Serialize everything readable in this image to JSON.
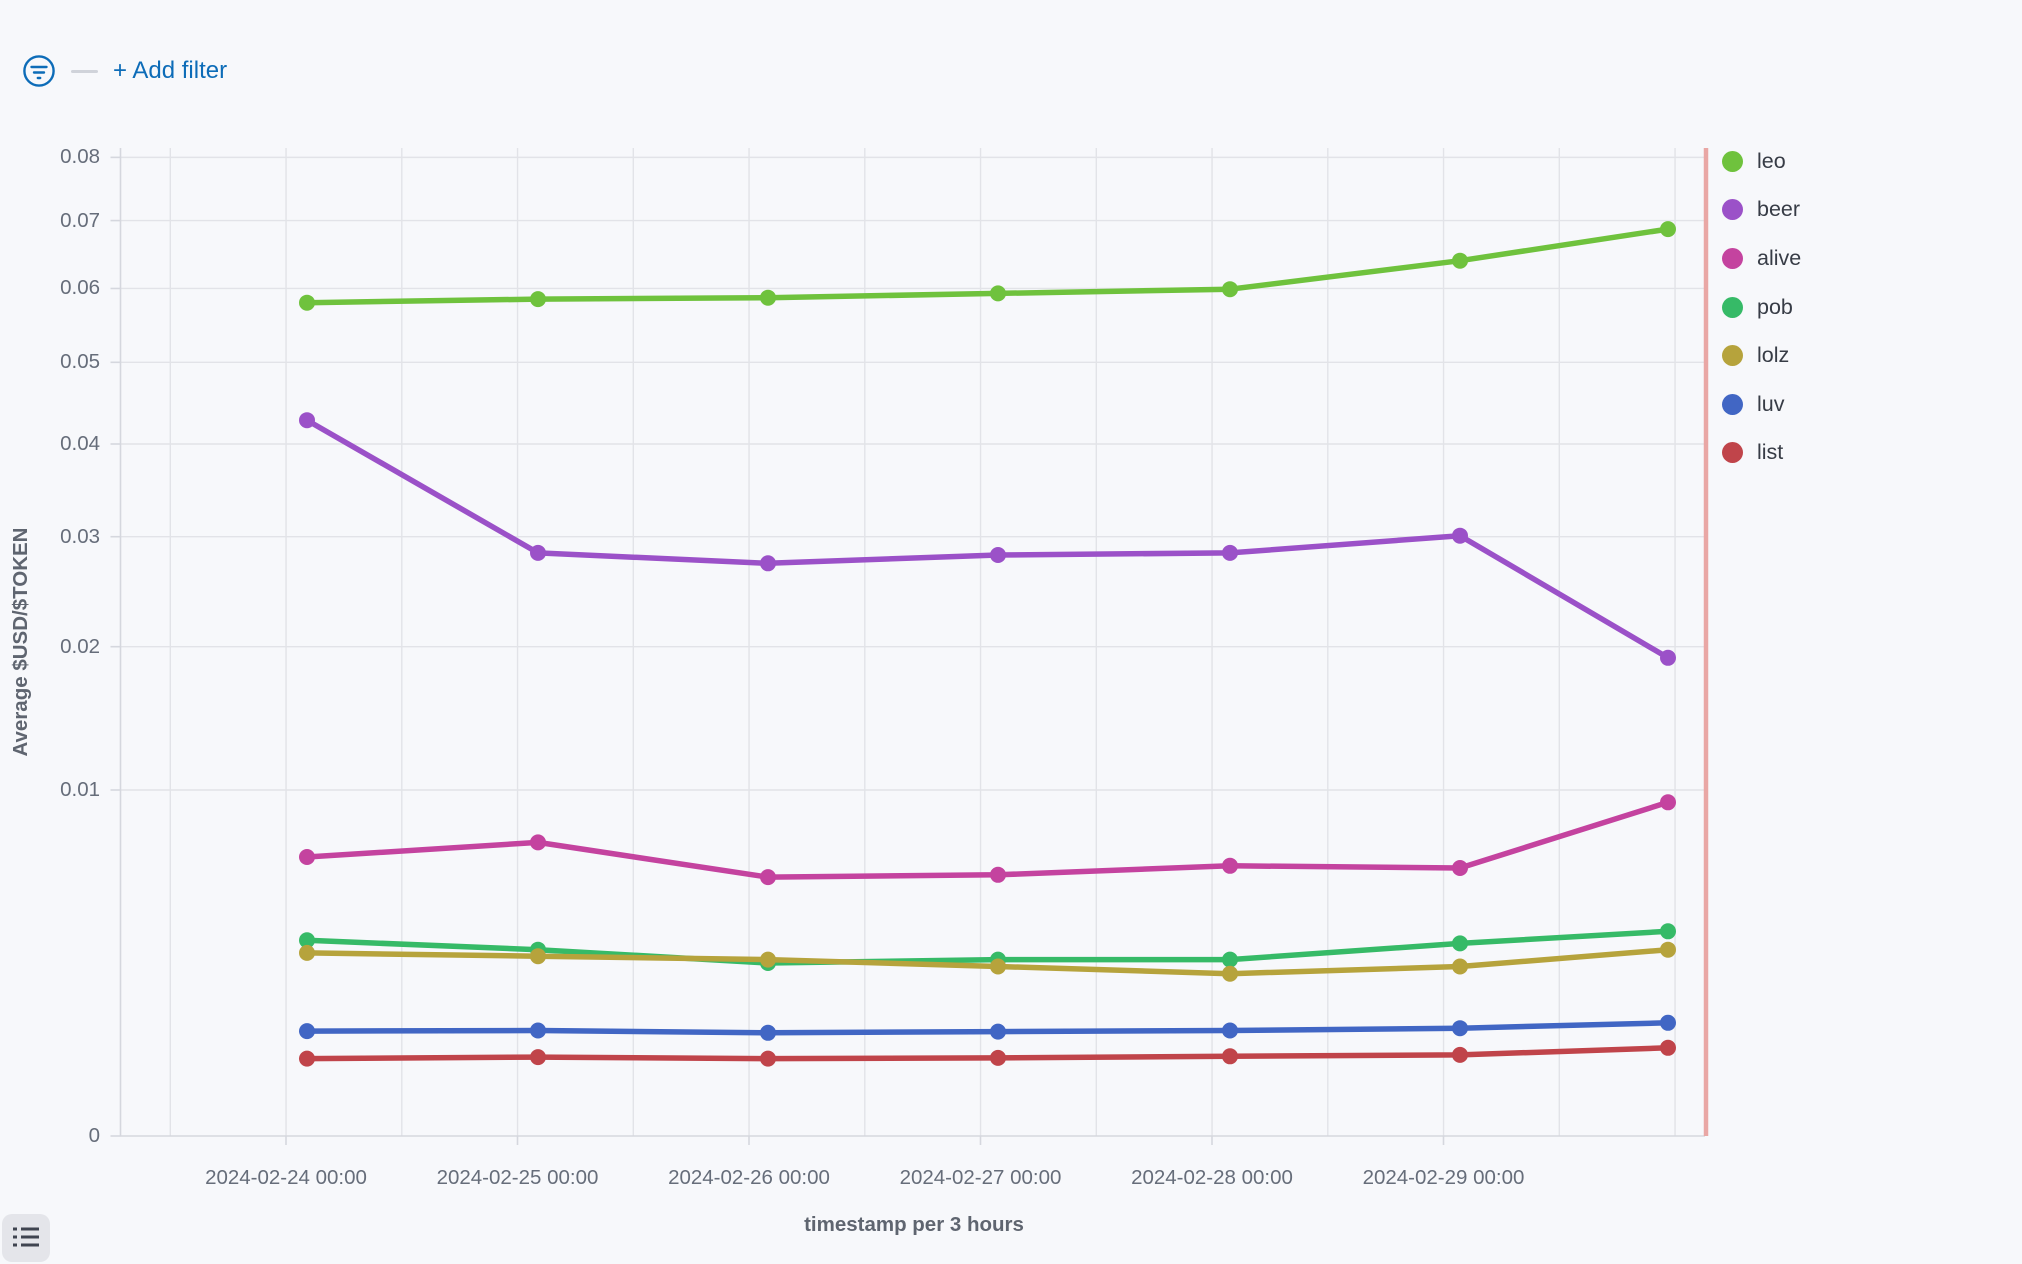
{
  "filter_bar": {
    "filter_icon": "filter-circle-icon",
    "add_filter_label": "+ Add filter",
    "accent_color": "#0d6cb8"
  },
  "chart_data": {
    "type": "line",
    "x_axis_title": "timestamp per 3 hours",
    "y_axis_title": "Average $USD/$TOKEN",
    "y_scale": "sqrt",
    "ylim": [
      0,
      0.08
    ],
    "grid": true,
    "legend_position": "right",
    "y_ticks": [
      {
        "value": 0.08,
        "label": "0.08"
      },
      {
        "value": 0.07,
        "label": "0.07"
      },
      {
        "value": 0.06,
        "label": "0.06"
      },
      {
        "value": 0.05,
        "label": "0.05"
      },
      {
        "value": 0.04,
        "label": "0.04"
      },
      {
        "value": 0.03,
        "label": "0.03"
      },
      {
        "value": 0.02,
        "label": "0.02"
      },
      {
        "value": 0.01,
        "label": "0.01"
      },
      {
        "value": 0,
        "label": "0"
      }
    ],
    "x_tick_labels": [
      "2024-02-24 00:00",
      "2024-02-25 00:00",
      "2024-02-26 00:00",
      "2024-02-27 00:00",
      "2024-02-28 00:00",
      "2024-02-29 00:00"
    ],
    "series": [
      {
        "name": "leo",
        "color": "#6fc23d",
        "values": [
          0.058,
          0.0585,
          0.0587,
          0.0593,
          0.0599,
          0.064,
          0.0687
        ]
      },
      {
        "name": "beer",
        "color": "#9b51c8",
        "values": [
          0.0428,
          0.0284,
          0.0274,
          0.0282,
          0.0284,
          0.0301,
          0.0191
        ]
      },
      {
        "name": "alive",
        "color": "#c4439f",
        "values": [
          0.0065,
          0.0072,
          0.0056,
          0.0057,
          0.0061,
          0.006,
          0.0093
        ]
      },
      {
        "name": "pob",
        "color": "#36ba67",
        "values": [
          0.0032,
          0.0029,
          0.0025,
          0.0026,
          0.0026,
          0.0031,
          0.0035
        ]
      },
      {
        "name": "lolz",
        "color": "#b6a33c",
        "values": [
          0.0028,
          0.0027,
          0.0026,
          0.0024,
          0.0022,
          0.0024,
          0.0029
        ]
      },
      {
        "name": "luv",
        "color": "#4166c4",
        "values": [
          0.00092,
          0.00093,
          0.00089,
          0.00091,
          0.00093,
          0.00097,
          0.00107
        ]
      },
      {
        "name": "list",
        "color": "#c0444a",
        "values": [
          0.0005,
          0.00052,
          0.0005,
          0.00051,
          0.00053,
          0.00055,
          0.00065
        ]
      }
    ],
    "annotations": [
      {
        "type": "vline",
        "position": "right_edge",
        "color": "#e9a7a5"
      }
    ]
  },
  "footer": {
    "legend_toggle_icon": "list-icon"
  }
}
